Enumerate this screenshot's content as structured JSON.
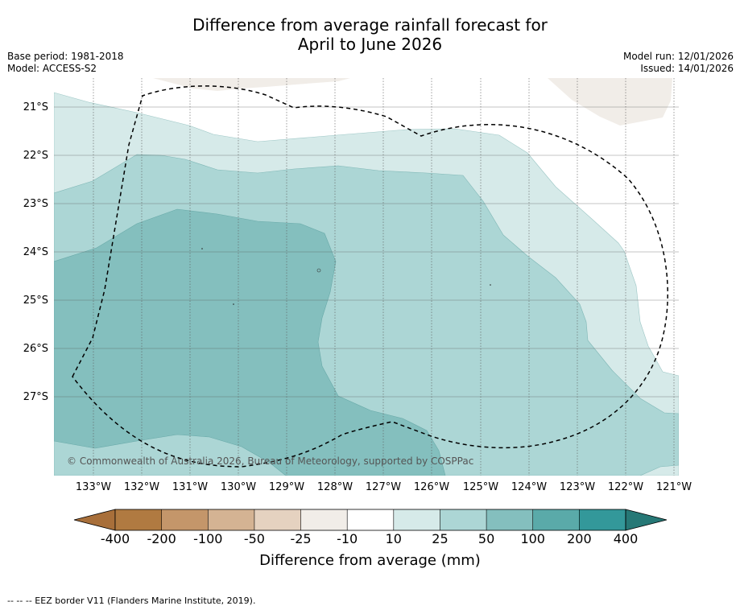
{
  "header": {
    "title_line1": "Difference from average rainfall forecast for",
    "title_line2": "April to June 2026",
    "base_period": "Base period: 1981-2018",
    "model": "Model: ACCESS-S2",
    "model_run": "Model run: 12/01/2026",
    "issued": "Issued: 14/01/2026"
  },
  "map": {
    "latitude_labels": [
      "21°S",
      "22°S",
      "23°S",
      "24°S",
      "25°S",
      "26°S",
      "27°S"
    ],
    "longitude_labels": [
      "133°W",
      "132°W",
      "131°W",
      "130°W",
      "129°W",
      "128°W",
      "127°W",
      "126°W",
      "125°W",
      "124°W",
      "123°W",
      "122°W",
      "121°W"
    ],
    "copyright": "© Commonwealth of Australia 2026, Bureau of Meteorology, supported by COSPPac",
    "legend_footer": "--  --  -- EEZ border V11 (Flanders Marine Institute, 2019)."
  },
  "colorbar": {
    "tick_labels": [
      "-400",
      "-200",
      "-100",
      "-50",
      "-25",
      "-10",
      "10",
      "25",
      "50",
      "100",
      "200",
      "400"
    ],
    "colors": [
      "#a86f3a",
      "#b07a41",
      "#c4966a",
      "#d4b393",
      "#e5d2c0",
      "#f1ede8",
      "#ffffff",
      "#d6eae9",
      "#acd6d5",
      "#84bfbe",
      "#5aaaa9",
      "#33989a",
      "#267876"
    ],
    "title": "Difference from average (mm)"
  },
  "colors": {
    "land": "#f1ede8",
    "band_10_25": "#d6eae9",
    "band_25_50": "#acd6d5",
    "band_50_100": "#84bfbe"
  }
}
